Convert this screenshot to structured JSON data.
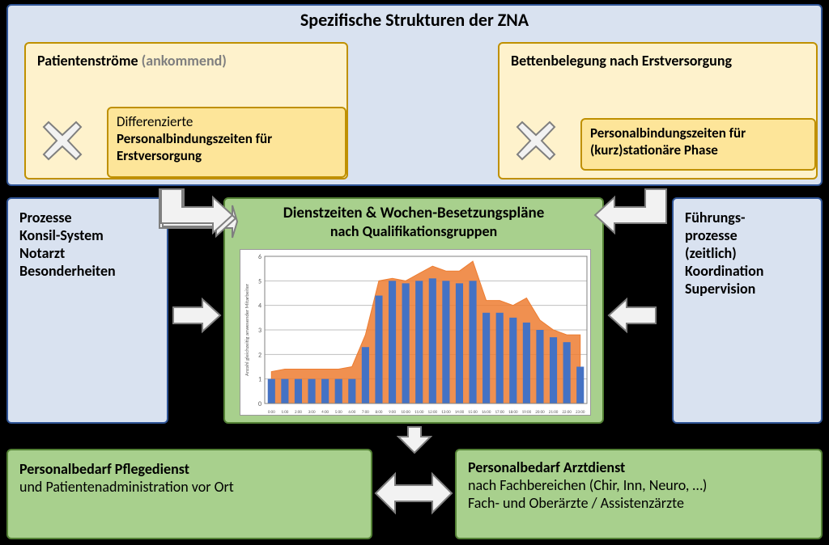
{
  "top_box": {
    "title": "Spezifische Strukturen der ZNA",
    "left_card": {
      "title_bold": "Patientenströme",
      "title_gray": "(ankommend)",
      "inner_line1": "Differenzierte",
      "inner_line2": "Personalbindungszeiten für",
      "inner_line3": "Erstversorgung"
    },
    "right_card": {
      "title": "Bettenbelegung nach Erstversorgung",
      "inner_line1": "Personalbindungszeiten für",
      "inner_line2": "(kurz)stationäre Phase"
    }
  },
  "center_box": {
    "title_bold": "Dienstzeiten & Wochen-Besetzungspläne",
    "title_sub": "nach Qualifikationsgruppen",
    "chart": {
      "type": "bar+area",
      "ylabel": "Anzahl gleichzeitig anwesender Mitarbeiter",
      "ylim": [
        0,
        6
      ],
      "ytick_step": 1,
      "x_count": 24,
      "x_label_start": "0:00",
      "x_label_end": "23:00",
      "bar_color": "#4472c4",
      "area_color": "#ed7d31",
      "area_opacity": 0.85,
      "bar_width": 0.55,
      "grid_color": "#bfbfbf",
      "background_color": "#ffffff",
      "bar_values": [
        1.0,
        1.0,
        1.0,
        1.0,
        1.0,
        1.0,
        1.0,
        2.3,
        4.4,
        5.0,
        4.9,
        5.0,
        5.1,
        5.0,
        4.9,
        5.0,
        3.7,
        3.7,
        3.5,
        3.3,
        3.0,
        2.7,
        2.5,
        1.5
      ],
      "area_values": [
        1.3,
        1.4,
        1.4,
        1.4,
        1.4,
        1.4,
        1.5,
        2.8,
        5.0,
        5.1,
        5.0,
        5.3,
        5.6,
        5.4,
        5.4,
        5.8,
        4.2,
        4.2,
        4.0,
        4.3,
        3.4,
        3.0,
        2.8,
        2.8
      ]
    }
  },
  "left_box": {
    "l1": "Prozesse",
    "l2": "Konsil-System",
    "l3": "Notarzt",
    "l4": "Besonderheiten"
  },
  "right_box": {
    "l1": "Führungs-",
    "l2": "prozesse",
    "l3": "(zeitlich)",
    "l4": "Koordination",
    "l5": "Supervision"
  },
  "bottom_left": {
    "title": "Personalbedarf Pflegedienst",
    "sub": "und Patientenadministration vor Ort"
  },
  "bottom_right": {
    "title": "Personalbedarf Arztdienst",
    "l1": "nach Fachbereichen (Chir, Inn, Neuro, …)",
    "l2": "Fach- und Oberärzte / Assistenzärzte"
  },
  "style": {
    "title_fontsize": 22,
    "card_title_fontsize": 18,
    "body_fontsize": 18,
    "chart_label_fontsize": 7,
    "blue_fill": "#d9e2f0",
    "blue_border": "#2f5496",
    "yellow_fill": "#fef2cc",
    "darkyellow_fill": "#fde599",
    "yellow_border": "#bf9000",
    "green_fill": "#a8d08d",
    "green_border": "#548235",
    "arrow_fill": "#f2f2f2",
    "arrow_border": "#7f7f7f"
  }
}
